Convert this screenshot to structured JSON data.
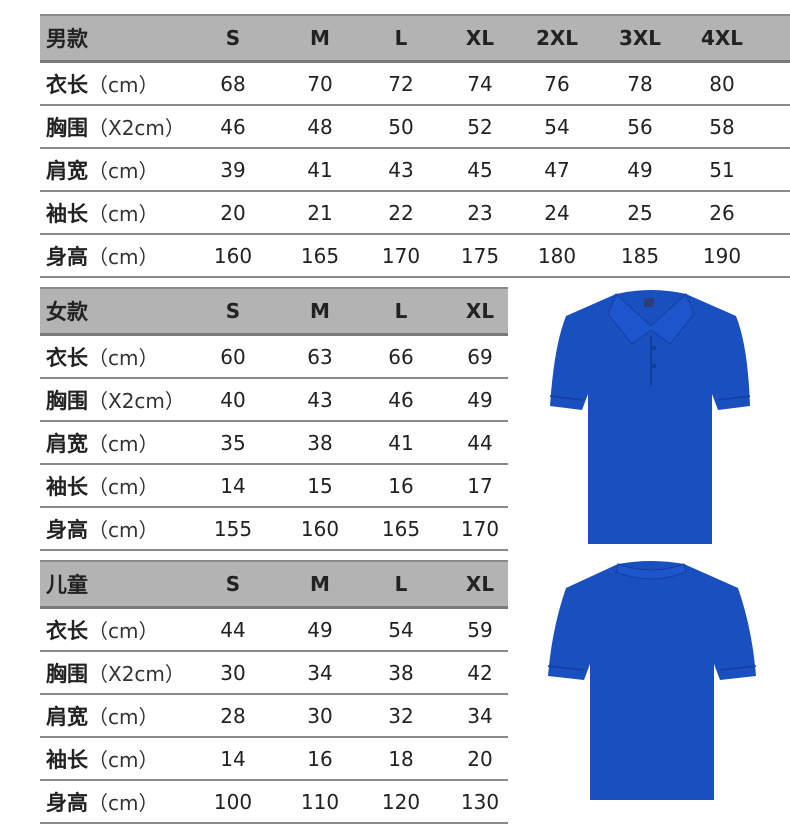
{
  "tables": [
    {
      "title": "男款",
      "sizes": [
        "S",
        "M",
        "L",
        "XL",
        "2XL",
        "3XL",
        "4XL"
      ],
      "rows": [
        {
          "name": "衣长",
          "unit": "（cm）",
          "values": [
            "68",
            "70",
            "72",
            "74",
            "76",
            "78",
            "80"
          ]
        },
        {
          "name": "胸围",
          "unit": "（X2cm）",
          "values": [
            "46",
            "48",
            "50",
            "52",
            "54",
            "56",
            "58"
          ]
        },
        {
          "name": "肩宽",
          "unit": "（cm）",
          "values": [
            "39",
            "41",
            "43",
            "45",
            "47",
            "49",
            "51"
          ]
        },
        {
          "name": "袖长",
          "unit": "（cm）",
          "values": [
            "20",
            "21",
            "22",
            "23",
            "24",
            "25",
            "26"
          ]
        },
        {
          "name": "身高",
          "unit": "（cm）",
          "values": [
            "160",
            "165",
            "170",
            "175",
            "180",
            "185",
            "190"
          ]
        }
      ]
    },
    {
      "title": "女款",
      "sizes": [
        "S",
        "M",
        "L",
        "XL"
      ],
      "rows": [
        {
          "name": "衣长",
          "unit": "（cm）",
          "values": [
            "60",
            "63",
            "66",
            "69"
          ]
        },
        {
          "name": "胸围",
          "unit": "（X2cm）",
          "values": [
            "40",
            "43",
            "46",
            "49"
          ]
        },
        {
          "name": "肩宽",
          "unit": "（cm）",
          "values": [
            "35",
            "38",
            "41",
            "44"
          ]
        },
        {
          "name": "袖长",
          "unit": "（cm）",
          "values": [
            "14",
            "15",
            "16",
            "17"
          ]
        },
        {
          "name": "身高",
          "unit": "（cm）",
          "values": [
            "155",
            "160",
            "165",
            "170"
          ]
        }
      ]
    },
    {
      "title": "儿童",
      "sizes": [
        "S",
        "M",
        "L",
        "XL"
      ],
      "rows": [
        {
          "name": "衣长",
          "unit": "（cm）",
          "values": [
            "44",
            "49",
            "54",
            "59"
          ]
        },
        {
          "name": "胸围",
          "unit": "（X2cm）",
          "values": [
            "30",
            "34",
            "38",
            "42"
          ]
        },
        {
          "name": "肩宽",
          "unit": "（cm）",
          "values": [
            "28",
            "30",
            "32",
            "34"
          ]
        },
        {
          "name": "袖长",
          "unit": "（cm）",
          "values": [
            "14",
            "16",
            "18",
            "20"
          ]
        },
        {
          "name": "身高",
          "unit": "（cm）",
          "values": [
            "100",
            "110",
            "120",
            "130"
          ]
        }
      ]
    }
  ],
  "shirt_color": "#1a4fc0"
}
